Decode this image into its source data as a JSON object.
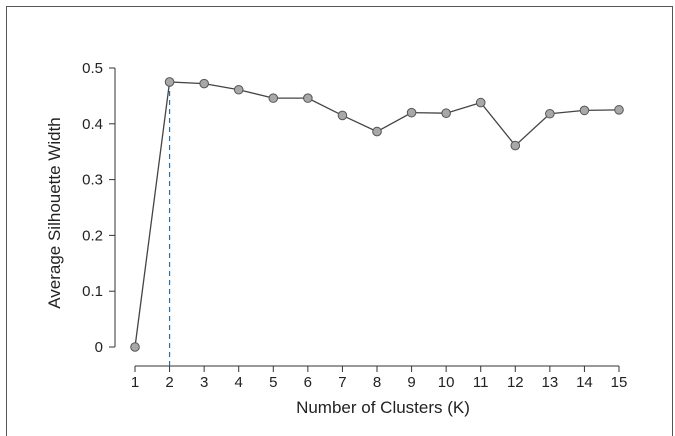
{
  "chart_data": {
    "type": "line",
    "title": "",
    "xlabel": "Number of Clusters (K)",
    "ylabel": "Average Silhouette Width",
    "x": [
      1,
      2,
      3,
      4,
      5,
      6,
      7,
      8,
      9,
      10,
      11,
      12,
      13,
      14,
      15
    ],
    "series": [
      {
        "values": [
          0,
          0.475,
          0.472,
          0.461,
          0.446,
          0.446,
          0.415,
          0.386,
          0.42,
          0.419,
          0.438,
          0.361,
          0.418,
          0.424,
          0.425
        ]
      }
    ],
    "xlim": [
      1,
      15
    ],
    "ylim": [
      0,
      0.5
    ],
    "x_ticks": [
      "1",
      "2",
      "3",
      "4",
      "5",
      "6",
      "7",
      "8",
      "9",
      "10",
      "11",
      "12",
      "13",
      "14",
      "15"
    ],
    "y_ticks": [
      "0",
      "0.1",
      "0.2",
      "0.3",
      "0.4",
      "0.5"
    ],
    "optimal_k": 2,
    "grid": false,
    "colors": {
      "line": "#444444",
      "marker_fill": "#a8a8a8",
      "marker_stroke": "#555555",
      "reference_line": "#2e6e9e"
    }
  }
}
